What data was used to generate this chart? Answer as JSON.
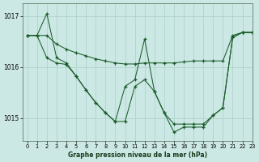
{
  "title": "Graphe pression niveau de la mer (hPa)",
  "bg_color": "#cce8e4",
  "grid_color": "#aacfca",
  "line_color": "#1a5c2a",
  "xlim": [
    -0.5,
    23
  ],
  "ylim": [
    1014.55,
    1017.25
  ],
  "yticks": [
    1015,
    1016,
    1017
  ],
  "xticks": [
    0,
    1,
    2,
    3,
    4,
    5,
    6,
    7,
    8,
    9,
    10,
    11,
    12,
    13,
    14,
    15,
    16,
    17,
    18,
    19,
    20,
    21,
    22,
    23
  ],
  "s_smooth": [
    1016.62,
    1016.62,
    1016.62,
    1016.45,
    1016.35,
    1016.28,
    1016.22,
    1016.16,
    1016.12,
    1016.08,
    1016.06,
    1016.06,
    1016.08,
    1016.08,
    1016.08,
    1016.08,
    1016.1,
    1016.12,
    1016.12,
    1016.12,
    1016.12,
    1016.62,
    1016.68,
    1016.68
  ],
  "s_mid": [
    1016.62,
    1016.62,
    1017.05,
    1016.18,
    1016.08,
    1015.82,
    1015.55,
    1015.3,
    1015.1,
    1014.93,
    1015.62,
    1015.75,
    1016.55,
    1015.52,
    1015.1,
    1014.88,
    1014.88,
    1014.88,
    1014.88,
    1015.05,
    1015.2,
    1016.58,
    1016.68,
    1016.68
  ],
  "s_low": [
    1016.62,
    1016.62,
    1016.18,
    1016.08,
    1016.05,
    1015.82,
    1015.55,
    1015.3,
    1015.1,
    1014.93,
    1014.93,
    1015.62,
    1015.75,
    1015.52,
    1015.1,
    1014.72,
    1014.82,
    1014.82,
    1014.82,
    1015.05,
    1015.2,
    1016.58,
    1016.68,
    1016.68
  ]
}
